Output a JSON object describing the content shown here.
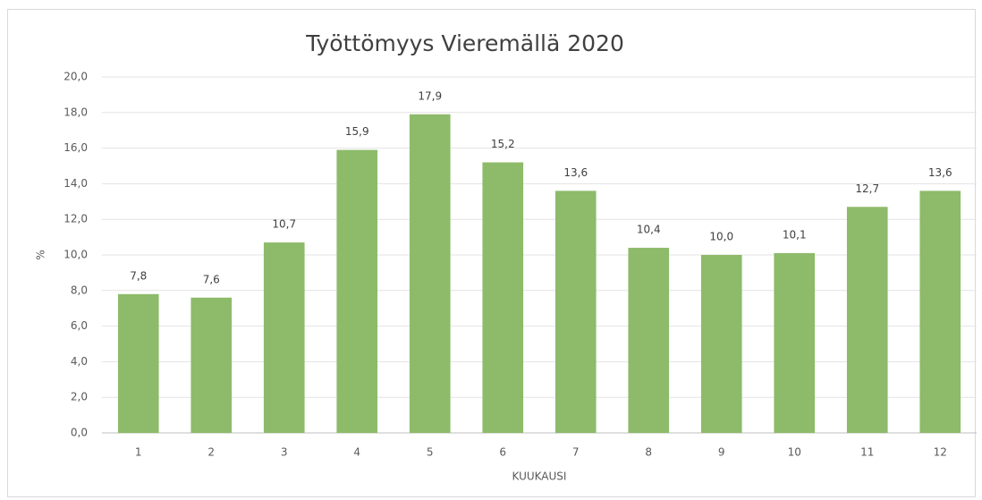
{
  "chart_data": {
    "type": "bar",
    "title": "Työttömyys Vieremällä 2020",
    "x_label": "KUUKAUSI",
    "y_label": "%",
    "categories": [
      "1",
      "2",
      "3",
      "4",
      "5",
      "6",
      "7",
      "8",
      "9",
      "10",
      "11",
      "12"
    ],
    "values": [
      7.8,
      7.6,
      10.7,
      15.9,
      17.9,
      15.2,
      13.6,
      10.4,
      10.0,
      10.1,
      12.7,
      13.6
    ],
    "value_labels": [
      "7,8",
      "7,6",
      "10,7",
      "15,9",
      "17,9",
      "15,2",
      "13,6",
      "10,4",
      "10,0",
      "10,1",
      "12,7",
      "13,6"
    ],
    "color": "#8dbb6a",
    "ylim": [
      0,
      20
    ],
    "yticks": [
      {
        "value": 0,
        "label": "0,0"
      },
      {
        "value": 2,
        "label": "2,0"
      },
      {
        "value": 4,
        "label": "4,0"
      },
      {
        "value": 6,
        "label": "6,0"
      },
      {
        "value": 8,
        "label": "8,0"
      },
      {
        "value": 10,
        "label": "10,0"
      },
      {
        "value": 12,
        "label": "12,0"
      },
      {
        "value": 14,
        "label": "14,0"
      },
      {
        "value": 16,
        "label": "16,0"
      },
      {
        "value": 18,
        "label": "18,0"
      },
      {
        "value": 20,
        "label": "20,0"
      }
    ],
    "grid": true
  }
}
